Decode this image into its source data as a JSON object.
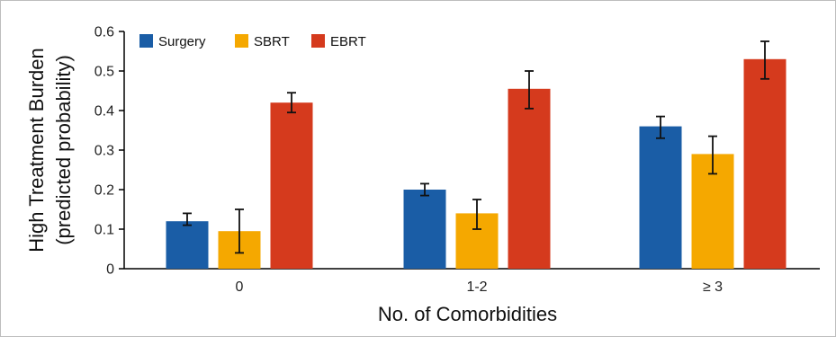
{
  "chart_data": {
    "type": "bar",
    "title": "",
    "xlabel": "No. of Comorbidities",
    "ylabel": [
      "High Treatment Burden",
      "(predicted probability)"
    ],
    "categories": [
      "0",
      "1-2",
      "≥ 3"
    ],
    "ylim": [
      0,
      0.6
    ],
    "yticks": [
      "0",
      "0.1",
      "0.2",
      "0.3",
      "0.4",
      "0.5",
      "0.6"
    ],
    "grid": false,
    "legend_position": "top-left",
    "series": [
      {
        "name": "Surgery",
        "color": "#1a5da6",
        "values": [
          0.12,
          0.2,
          0.36
        ],
        "err_low": [
          0.11,
          0.185,
          0.33
        ],
        "err_high": [
          0.14,
          0.215,
          0.385
        ]
      },
      {
        "name": "SBRT",
        "color": "#f5a800",
        "values": [
          0.095,
          0.14,
          0.29
        ],
        "err_low": [
          0.04,
          0.1,
          0.24
        ],
        "err_high": [
          0.15,
          0.175,
          0.335
        ]
      },
      {
        "name": "EBRT",
        "color": "#d53a1d",
        "values": [
          0.42,
          0.455,
          0.53
        ],
        "err_low": [
          0.395,
          0.405,
          0.48
        ],
        "err_high": [
          0.445,
          0.5,
          0.575
        ]
      }
    ]
  }
}
